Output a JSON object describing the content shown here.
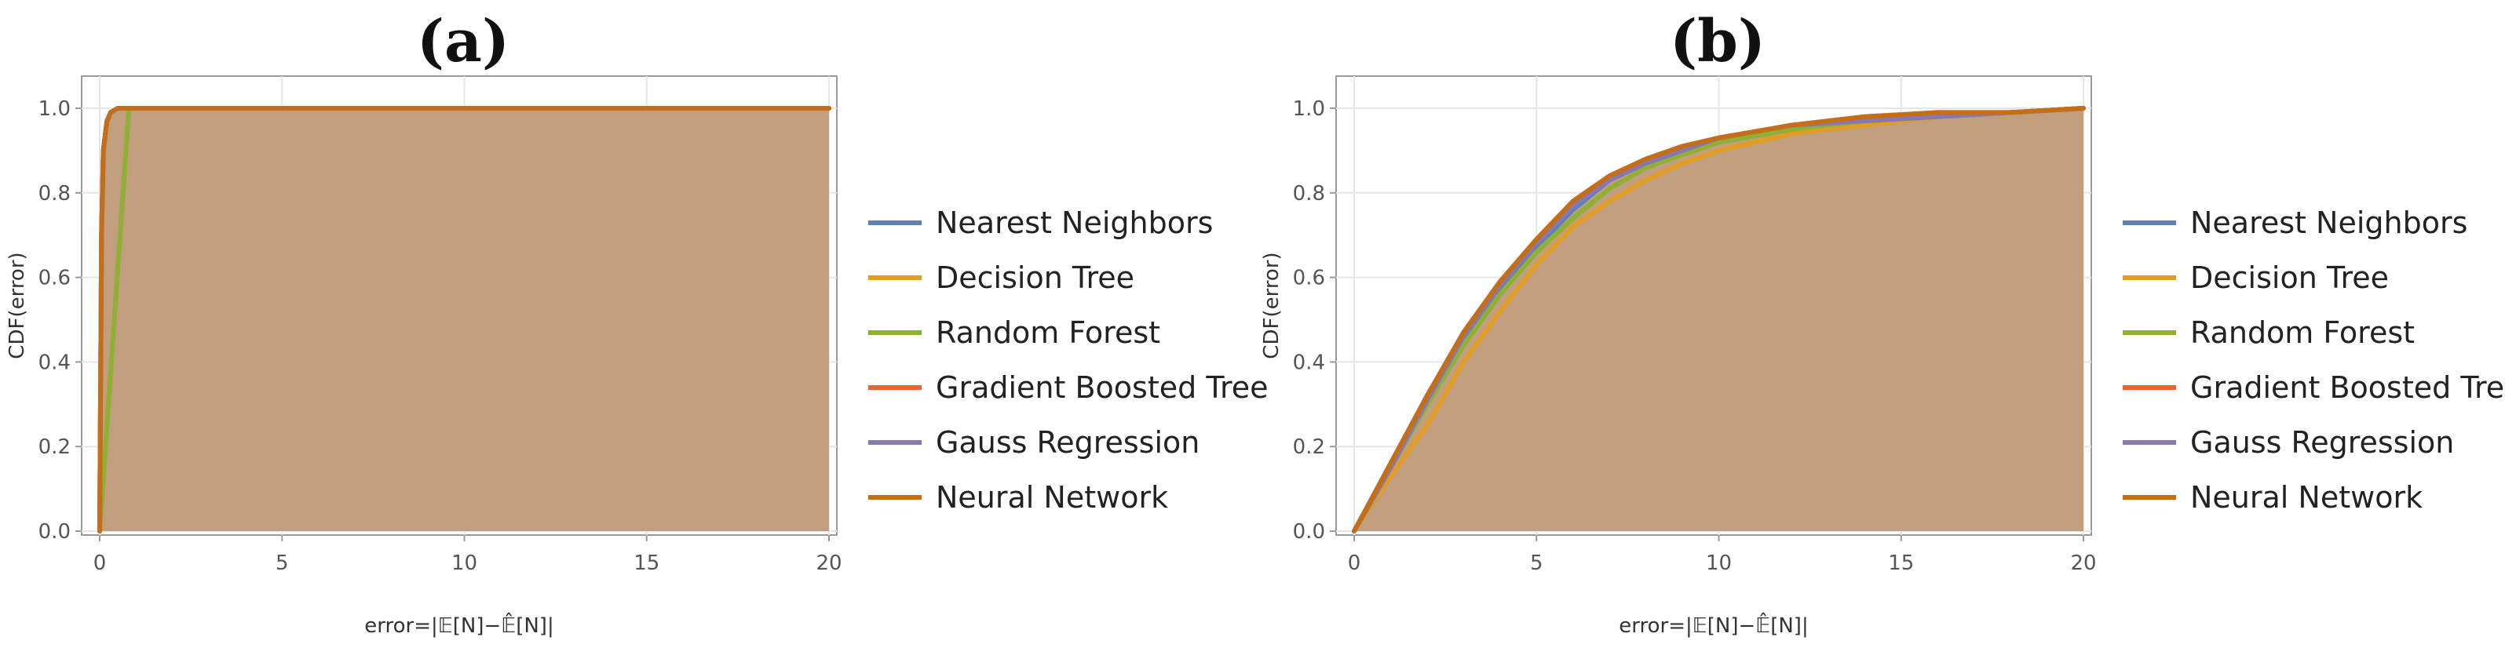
{
  "chart_data": [
    {
      "type": "area",
      "title": "(a)",
      "xlabel": "error=|𝔼[N]−𝔼̂[N]|",
      "ylabel": "CDF(error)",
      "xlim": [
        0,
        20
      ],
      "ylim": [
        0,
        1.0
      ],
      "x_ticks": [
        "0",
        "5",
        "10",
        "15",
        "20"
      ],
      "y_ticks": [
        "0.0",
        "0.2",
        "0.4",
        "0.6",
        "0.8",
        "1.0"
      ],
      "grid": true,
      "legend": "right",
      "fill_color": "#c19e7e",
      "series": [
        {
          "name": "Nearest Neighbors",
          "color": "#5e81b5",
          "x": [
            0,
            0.05,
            0.1,
            0.2,
            0.3,
            0.5,
            20
          ],
          "y": [
            0,
            0.7,
            0.9,
            0.97,
            0.99,
            1.0,
            1.0
          ]
        },
        {
          "name": "Decision Tree",
          "color": "#e19c24",
          "x": [
            0,
            0.05,
            0.1,
            0.2,
            0.3,
            0.5,
            20
          ],
          "y": [
            0,
            0.7,
            0.9,
            0.97,
            0.99,
            1.0,
            1.0
          ]
        },
        {
          "name": "Random Forest",
          "color": "#8fb032",
          "x": [
            0,
            0.8,
            20
          ],
          "y": [
            0,
            1.0,
            1.0
          ]
        },
        {
          "name": "Gradient Boosted Tree",
          "color": "#eb6235",
          "x": [
            0,
            0.05,
            0.1,
            0.2,
            0.3,
            0.5,
            20
          ],
          "y": [
            0,
            0.7,
            0.9,
            0.97,
            0.99,
            1.0,
            1.0
          ]
        },
        {
          "name": "Gauss Regression",
          "color": "#8778b3",
          "x": [
            0,
            0.05,
            0.1,
            0.2,
            0.3,
            0.5,
            20
          ],
          "y": [
            0,
            0.7,
            0.9,
            0.97,
            0.99,
            1.0,
            1.0
          ]
        },
        {
          "name": "Neural Network",
          "color": "#c56e1a",
          "x": [
            0,
            0.05,
            0.1,
            0.2,
            0.3,
            0.5,
            20
          ],
          "y": [
            0,
            0.7,
            0.9,
            0.97,
            0.99,
            1.0,
            1.0
          ]
        }
      ]
    },
    {
      "type": "area",
      "title": "(b)",
      "xlabel": "error=|𝔼[N]−𝔼̂[N]|",
      "ylabel": "CDF(error)",
      "xlim": [
        0,
        20
      ],
      "ylim": [
        0,
        1.0
      ],
      "x_ticks": [
        "0",
        "5",
        "10",
        "15",
        "20"
      ],
      "y_ticks": [
        "0.0",
        "0.2",
        "0.4",
        "0.6",
        "0.8",
        "1.0"
      ],
      "grid": true,
      "legend": "right",
      "fill_color": "#c19e7e",
      "series": [
        {
          "name": "Nearest Neighbors",
          "color": "#5e81b5",
          "x": [
            0,
            1,
            2,
            3,
            4,
            5,
            6,
            7,
            8,
            9,
            10,
            12,
            14,
            16,
            18,
            20
          ],
          "y": [
            0,
            0.15,
            0.3,
            0.45,
            0.57,
            0.67,
            0.76,
            0.83,
            0.87,
            0.9,
            0.92,
            0.95,
            0.97,
            0.98,
            0.99,
            1.0
          ]
        },
        {
          "name": "Decision Tree",
          "color": "#e19c24",
          "x": [
            0,
            1,
            2,
            3,
            4,
            5,
            6,
            7,
            8,
            9,
            10,
            12,
            14,
            16,
            18,
            20
          ],
          "y": [
            0,
            0.13,
            0.25,
            0.4,
            0.52,
            0.63,
            0.72,
            0.78,
            0.83,
            0.87,
            0.9,
            0.94,
            0.96,
            0.98,
            0.99,
            1.0
          ]
        },
        {
          "name": "Random Forest",
          "color": "#8fb032",
          "x": [
            0,
            1,
            2,
            3,
            4,
            5,
            6,
            7,
            8,
            9,
            10,
            12,
            14,
            16,
            18,
            20
          ],
          "y": [
            0,
            0.15,
            0.3,
            0.44,
            0.56,
            0.66,
            0.74,
            0.81,
            0.86,
            0.89,
            0.92,
            0.95,
            0.97,
            0.98,
            0.99,
            1.0
          ]
        },
        {
          "name": "Gradient Boosted Tree",
          "color": "#eb6235",
          "x": [
            0,
            1,
            2,
            3,
            4,
            5,
            6,
            7,
            8,
            9,
            10,
            12,
            14,
            16,
            18,
            20
          ],
          "y": [
            0,
            0.16,
            0.32,
            0.47,
            0.59,
            0.69,
            0.78,
            0.84,
            0.88,
            0.91,
            0.93,
            0.96,
            0.98,
            0.99,
            0.99,
            1.0
          ]
        },
        {
          "name": "Gauss Regression",
          "color": "#8778b3",
          "x": [
            0,
            1,
            2,
            3,
            4,
            5,
            6,
            7,
            8,
            9,
            10,
            12,
            14,
            16,
            18,
            20
          ],
          "y": [
            0,
            0.15,
            0.31,
            0.46,
            0.58,
            0.68,
            0.77,
            0.83,
            0.87,
            0.9,
            0.93,
            0.96,
            0.97,
            0.98,
            0.99,
            1.0
          ]
        },
        {
          "name": "Neural Network",
          "color": "#c56e1a",
          "x": [
            0,
            1,
            2,
            3,
            4,
            5,
            6,
            7,
            8,
            9,
            10,
            12,
            14,
            16,
            18,
            20
          ],
          "y": [
            0,
            0.16,
            0.32,
            0.47,
            0.59,
            0.69,
            0.78,
            0.84,
            0.88,
            0.91,
            0.93,
            0.96,
            0.98,
            0.99,
            0.99,
            1.0
          ]
        }
      ]
    }
  ]
}
